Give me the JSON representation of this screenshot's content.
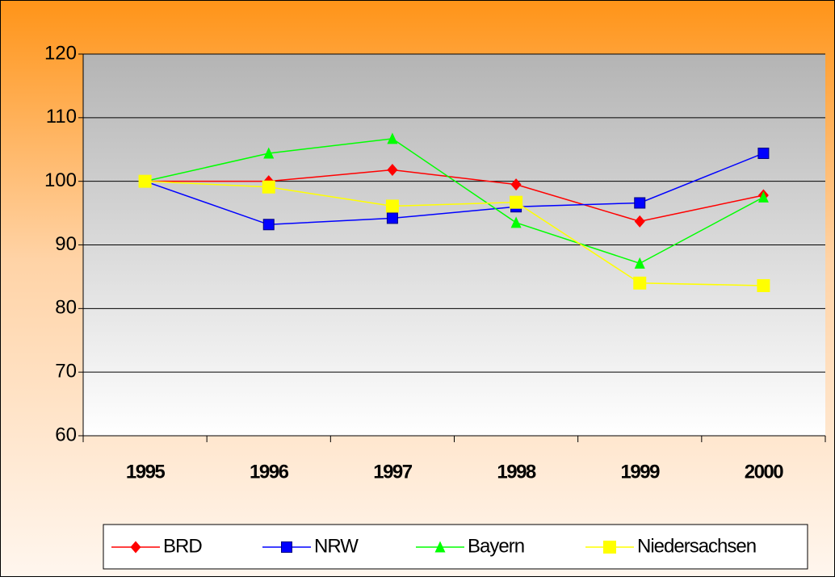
{
  "chart_data": {
    "type": "line",
    "categories": [
      "1995",
      "1996",
      "1997",
      "1998",
      "1999",
      "2000"
    ],
    "series": [
      {
        "name": "BRD",
        "color": "#ff0000",
        "marker": "diamond",
        "values": [
          100,
          100,
          101.8,
          99.5,
          93.7,
          97.8
        ]
      },
      {
        "name": "NRW",
        "color": "#0000ff",
        "marker": "square",
        "values": [
          100,
          93.2,
          94.2,
          96,
          96.6,
          104.4
        ]
      },
      {
        "name": "Bayern",
        "color": "#00ff00",
        "marker": "triangle",
        "values": [
          100,
          104.4,
          106.7,
          93.5,
          87.1,
          97.5
        ]
      },
      {
        "name": "Niedersachsen",
        "color": "#ffff00",
        "marker": "square",
        "values": [
          100,
          99.1,
          96.1,
          96.7,
          84,
          83.6
        ]
      }
    ],
    "ylim": [
      60,
      120
    ],
    "yticks": [
      60,
      70,
      80,
      90,
      100,
      110,
      120
    ],
    "grid": true,
    "legend": "bottom"
  }
}
